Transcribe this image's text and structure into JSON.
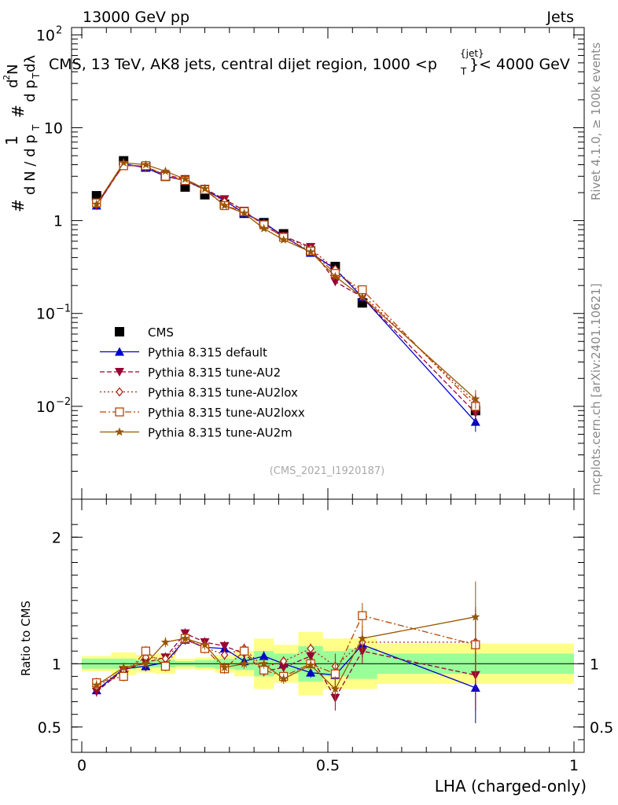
{
  "header": {
    "left": "13000 GeV pp",
    "right": "Jets"
  },
  "side": {
    "rivet": "Rivet 4.1.0, ≥ 100k events",
    "ref": "mcplots.cern.ch [arXiv:2401.10621]"
  },
  "watermark": "(CMS_2021_I1920187)",
  "title": {
    "main": "CMS, 13 TeV, AK8 jets, central dijet region, 1000 <p",
    "sup": "{jet}",
    "sub": "T",
    "tail": "}< 4000 GeV"
  },
  "ylabel": {
    "one": "1",
    "num_pre": "d",
    "num_sup": "2",
    "num_post": "N",
    "den": "d N / d p",
    "den_sub": "T",
    "den2": "d p",
    "den2_sub": "T",
    "den2_tail": " dλ",
    "hash": "#"
  },
  "ratio_ylabel": "Ratio to CMS",
  "xlabel": "LHA (charged-only)",
  "colors": {
    "cms": "#000000",
    "default": "#0000cc",
    "au2": "#990033",
    "au2lox": "#aa2211",
    "au2loxx": "#bb4400",
    "au2m": "#995500",
    "green": "#99ff99",
    "yellow": "#ffff88"
  },
  "chart_data": {
    "type": "line",
    "x": [
      0.03,
      0.085,
      0.13,
      0.17,
      0.21,
      0.25,
      0.29,
      0.33,
      0.37,
      0.41,
      0.465,
      0.515,
      0.57,
      0.8
    ],
    "xlim": [
      0,
      1
    ],
    "ylim_main": [
      0.001,
      120
    ],
    "ylim_ratio": [
      0.3,
      2.3
    ],
    "main_ticks": [
      {
        "v": 0.01,
        "base": "10",
        "exp": "−2"
      },
      {
        "v": 0.1,
        "base": "10",
        "exp": "−1"
      },
      {
        "v": 1,
        "base": "1",
        "exp": ""
      },
      {
        "v": 10,
        "base": "10",
        "exp": ""
      },
      {
        "v": 100,
        "base": "10",
        "exp": "2"
      }
    ],
    "ratio_ticks": [
      "0.5",
      "1",
      "2"
    ],
    "x_ticks": [
      "0",
      "0.5",
      "1"
    ],
    "series": [
      {
        "name": "CMS",
        "marker": "square",
        "values": [
          1.85,
          4.4,
          3.8,
          3.0,
          2.3,
          1.9,
          1.5,
          1.2,
          0.95,
          0.72,
          0.47,
          0.32,
          0.13,
          0.009
        ]
      },
      {
        "name": "Pythia 8.315 default",
        "marker": "triangle-up",
        "dash": "",
        "values": [
          1.45,
          4.1,
          3.7,
          3.0,
          2.7,
          2.15,
          1.65,
          1.2,
          0.95,
          0.68,
          0.45,
          0.3,
          0.15,
          0.0068
        ],
        "ratio": [
          0.79,
          0.96,
          0.98,
          1.01,
          1.19,
          1.13,
          1.12,
          1.02,
          1.06,
          1.0,
          0.93,
          0.91,
          1.15,
          0.81
        ]
      },
      {
        "name": "Pythia 8.315 tune-AU2",
        "marker": "triangle-down",
        "dash": "6,3",
        "values": [
          1.45,
          4.0,
          3.8,
          3.1,
          2.8,
          2.2,
          1.7,
          1.28,
          0.88,
          0.68,
          0.52,
          0.22,
          0.15,
          0.0085
        ],
        "ratio": [
          0.78,
          0.95,
          1.01,
          1.05,
          1.24,
          1.17,
          1.14,
          1.08,
          0.94,
          0.97,
          1.06,
          0.73,
          1.1,
          0.91
        ]
      },
      {
        "name": "Pythia 8.315 tune-AU2lox",
        "marker": "diamond",
        "dash": "2,3",
        "values": [
          1.5,
          4.0,
          3.8,
          3.1,
          2.7,
          2.2,
          1.6,
          1.25,
          0.92,
          0.68,
          0.5,
          0.3,
          0.16,
          0.011
        ],
        "ratio": [
          0.82,
          0.95,
          1.05,
          1.04,
          1.2,
          1.13,
          1.07,
          1.12,
          0.97,
          1.02,
          1.12,
          0.98,
          1.17,
          1.17
        ]
      },
      {
        "name": "Pythia 8.315 tune-AU2loxx",
        "marker": "square-open",
        "dash": "8,3,2,3",
        "values": [
          1.55,
          3.9,
          3.9,
          3.0,
          2.7,
          2.15,
          1.45,
          1.25,
          0.9,
          0.66,
          0.47,
          0.27,
          0.18,
          0.01
        ],
        "ratio": [
          0.85,
          0.9,
          1.1,
          0.98,
          1.2,
          1.12,
          0.96,
          1.1,
          0.95,
          0.9,
          1.0,
          0.92,
          1.38,
          1.15
        ]
      },
      {
        "name": "Pythia 8.315 tune-AU2m",
        "marker": "star",
        "dash": "",
        "values": [
          1.5,
          4.2,
          4.0,
          3.4,
          2.8,
          2.2,
          1.45,
          1.2,
          0.82,
          0.62,
          0.46,
          0.25,
          0.15,
          0.012
        ],
        "ratio": [
          0.83,
          0.97,
          1.0,
          1.17,
          1.2,
          1.15,
          0.97,
          1.0,
          1.0,
          0.88,
          0.99,
          0.8,
          1.2,
          1.37
        ]
      }
    ],
    "bands": [
      {
        "x0": 0.0,
        "x1": 0.06,
        "g": [
          0.96,
          1.04
        ],
        "y": [
          0.94,
          1.06
        ]
      },
      {
        "x0": 0.06,
        "x1": 0.11,
        "g": [
          0.96,
          1.04
        ],
        "y": [
          0.91,
          1.09
        ]
      },
      {
        "x0": 0.11,
        "x1": 0.15,
        "g": [
          0.97,
          1.03
        ],
        "y": [
          0.93,
          1.07
        ]
      },
      {
        "x0": 0.15,
        "x1": 0.19,
        "g": [
          0.97,
          1.03
        ],
        "y": [
          0.92,
          1.08
        ]
      },
      {
        "x0": 0.19,
        "x1": 0.23,
        "g": [
          0.98,
          1.02
        ],
        "y": [
          0.96,
          1.04
        ]
      },
      {
        "x0": 0.23,
        "x1": 0.27,
        "g": [
          0.97,
          1.03
        ],
        "y": [
          0.95,
          1.05
        ]
      },
      {
        "x0": 0.27,
        "x1": 0.31,
        "g": [
          0.96,
          1.04
        ],
        "y": [
          0.93,
          1.07
        ]
      },
      {
        "x0": 0.31,
        "x1": 0.35,
        "g": [
          0.95,
          1.05
        ],
        "y": [
          0.9,
          1.1
        ]
      },
      {
        "x0": 0.35,
        "x1": 0.39,
        "g": [
          0.9,
          1.1
        ],
        "y": [
          0.8,
          1.2
        ]
      },
      {
        "x0": 0.39,
        "x1": 0.44,
        "g": [
          0.92,
          1.08
        ],
        "y": [
          0.85,
          1.15
        ]
      },
      {
        "x0": 0.44,
        "x1": 0.49,
        "g": [
          0.86,
          1.14
        ],
        "y": [
          0.75,
          1.25
        ]
      },
      {
        "x0": 0.49,
        "x1": 0.54,
        "g": [
          0.9,
          1.1
        ],
        "y": [
          0.8,
          1.2
        ]
      },
      {
        "x0": 0.54,
        "x1": 0.6,
        "g": [
          0.88,
          1.12
        ],
        "y": [
          0.8,
          1.2
        ]
      },
      {
        "x0": 0.6,
        "x1": 1.0,
        "g": [
          0.92,
          1.08
        ],
        "y": [
          0.84,
          1.16
        ]
      }
    ]
  }
}
